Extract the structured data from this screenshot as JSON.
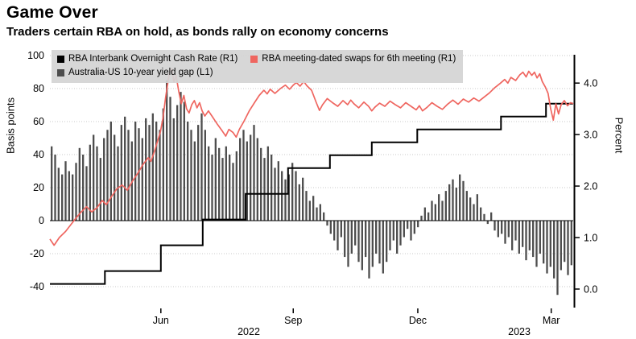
{
  "header": {
    "title": "Game Over",
    "subtitle": "Traders certain RBA on hold, as bonds rally on economy concerns"
  },
  "chart_data": {
    "type": "mixed",
    "title": "Game Over",
    "subtitle": "Traders certain RBA on hold, as bonds rally on economy concerns",
    "grid": {
      "color": "#c9c9c9",
      "zero_line_color": "#000000"
    },
    "left_axis": {
      "label": "Basis points",
      "min": -52.7,
      "max": 100.5,
      "ticks": [
        {
          "value": -40,
          "label": "-40"
        },
        {
          "value": -20,
          "label": "-20"
        },
        {
          "value": 0,
          "label": "0"
        },
        {
          "value": 20,
          "label": "20"
        },
        {
          "value": 40,
          "label": "40"
        },
        {
          "value": 60,
          "label": "60"
        },
        {
          "value": 80,
          "label": "80"
        },
        {
          "value": 100,
          "label": "100"
        }
      ]
    },
    "right_axis": {
      "label": "Percent",
      "min": -0.36,
      "max": 4.55,
      "ticks": [
        {
          "value": 0,
          "label": "0.0"
        },
        {
          "value": 1,
          "label": "1.0"
        },
        {
          "value": 2,
          "label": "2.0"
        },
        {
          "value": 3,
          "label": "3.0"
        },
        {
          "value": 4,
          "label": "4.0"
        }
      ]
    },
    "x_axis": {
      "month_ticks": [
        {
          "f": 0.212,
          "label": "Jun"
        },
        {
          "f": 0.465,
          "label": "Sep"
        },
        {
          "f": 0.703,
          "label": "Dec"
        },
        {
          "f": 0.958,
          "label": "Mar"
        }
      ],
      "year_labels": [
        {
          "f": 0.38,
          "label": "2022"
        },
        {
          "f": 0.897,
          "label": "2023"
        }
      ]
    },
    "legend": [
      {
        "label": "RBA Interbank Overnight Cash Rate (R1)",
        "color": "#000000",
        "series": "cash_rate"
      },
      {
        "label": "RBA meeting-dated swaps for 6th meeting (R1)",
        "color": "#ef6660",
        "series": "swaps"
      },
      {
        "label": "Australia-US 10-year yield gap (L1)",
        "color": "#4d4d4d",
        "series": "yield_gap"
      }
    ],
    "series": {
      "yield_gap": {
        "type": "bar",
        "axis": "left",
        "unit": "bp",
        "color": "#4d4d4d",
        "values": [
          45,
          40,
          32,
          28,
          36,
          30,
          28,
          35,
          44,
          40,
          33,
          46,
          52,
          45,
          38,
          50,
          55,
          60,
          52,
          45,
          58,
          63,
          55,
          48,
          60,
          56,
          50,
          62,
          58,
          65,
          60,
          55,
          68,
          85,
          75,
          62,
          70,
          78,
          72,
          60,
          55,
          48,
          58,
          65,
          55,
          45,
          40,
          50,
          44,
          38,
          45,
          40,
          35,
          42,
          50,
          55,
          48,
          52,
          58,
          50,
          44,
          38,
          45,
          40,
          32,
          36,
          30,
          25,
          28,
          35,
          30,
          22,
          26,
          18,
          12,
          15,
          8,
          10,
          5,
          -3,
          -8,
          -12,
          -18,
          -10,
          -22,
          -28,
          -20,
          -15,
          -25,
          -30,
          -22,
          -35,
          -28,
          -20,
          -26,
          -32,
          -25,
          -18,
          -12,
          -20,
          -15,
          -10,
          -5,
          -12,
          -8,
          -4,
          3,
          8,
          5,
          12,
          10,
          16,
          12,
          18,
          22,
          25,
          20,
          28,
          24,
          18,
          14,
          10,
          16,
          8,
          4,
          -2,
          5,
          -6,
          -10,
          -8,
          -14,
          -10,
          -18,
          -12,
          -20,
          -16,
          -24,
          -18,
          -22,
          -28,
          -20,
          -26,
          -32,
          -28,
          -35,
          -45,
          -30,
          -25,
          -33,
          -27
        ]
      },
      "cash_rate": {
        "type": "step",
        "axis": "right",
        "unit": "%",
        "color": "#000000",
        "points": [
          [
            0.0,
            0.1
          ],
          [
            0.105,
            0.35
          ],
          [
            0.212,
            0.85
          ],
          [
            0.292,
            1.35
          ],
          [
            0.374,
            1.85
          ],
          [
            0.455,
            2.35
          ],
          [
            0.535,
            2.6
          ],
          [
            0.615,
            2.85
          ],
          [
            0.702,
            3.1
          ],
          [
            0.862,
            3.35
          ],
          [
            0.948,
            3.6
          ],
          [
            1.0,
            3.6
          ]
        ]
      },
      "swaps": {
        "type": "line",
        "axis": "right",
        "unit": "%",
        "color": "#ef6660",
        "points": [
          [
            0.0,
            0.97
          ],
          [
            0.008,
            0.85
          ],
          [
            0.018,
            1.0
          ],
          [
            0.03,
            1.12
          ],
          [
            0.04,
            1.25
          ],
          [
            0.05,
            1.38
          ],
          [
            0.06,
            1.5
          ],
          [
            0.07,
            1.6
          ],
          [
            0.08,
            1.5
          ],
          [
            0.09,
            1.58
          ],
          [
            0.1,
            1.72
          ],
          [
            0.108,
            1.64
          ],
          [
            0.118,
            1.8
          ],
          [
            0.128,
            1.95
          ],
          [
            0.138,
            2.02
          ],
          [
            0.148,
            1.92
          ],
          [
            0.158,
            2.1
          ],
          [
            0.168,
            2.25
          ],
          [
            0.178,
            2.42
          ],
          [
            0.188,
            2.55
          ],
          [
            0.193,
            2.48
          ],
          [
            0.2,
            2.68
          ],
          [
            0.206,
            2.88
          ],
          [
            0.211,
            3.05
          ],
          [
            0.216,
            3.32
          ],
          [
            0.221,
            3.72
          ],
          [
            0.226,
            4.05
          ],
          [
            0.229,
            4.22
          ],
          [
            0.233,
            4.28
          ],
          [
            0.237,
            4.02
          ],
          [
            0.241,
            4.15
          ],
          [
            0.246,
            3.85
          ],
          [
            0.251,
            3.6
          ],
          [
            0.256,
            3.76
          ],
          [
            0.261,
            3.5
          ],
          [
            0.266,
            3.42
          ],
          [
            0.271,
            3.58
          ],
          [
            0.276,
            3.66
          ],
          [
            0.281,
            3.52
          ],
          [
            0.286,
            3.62
          ],
          [
            0.291,
            3.46
          ],
          [
            0.296,
            3.36
          ],
          [
            0.303,
            3.46
          ],
          [
            0.311,
            3.34
          ],
          [
            0.32,
            3.2
          ],
          [
            0.33,
            3.06
          ],
          [
            0.336,
            2.97
          ],
          [
            0.342,
            3.1
          ],
          [
            0.35,
            3.04
          ],
          [
            0.356,
            2.95
          ],
          [
            0.362,
            3.1
          ],
          [
            0.371,
            3.26
          ],
          [
            0.381,
            3.46
          ],
          [
            0.391,
            3.62
          ],
          [
            0.4,
            3.76
          ],
          [
            0.409,
            3.86
          ],
          [
            0.415,
            3.79
          ],
          [
            0.421,
            3.88
          ],
          [
            0.43,
            3.8
          ],
          [
            0.44,
            3.89
          ],
          [
            0.45,
            3.96
          ],
          [
            0.458,
            3.88
          ],
          [
            0.465,
            3.96
          ],
          [
            0.471,
            4.01
          ],
          [
            0.478,
            3.94
          ],
          [
            0.485,
            4.03
          ],
          [
            0.491,
            3.95
          ],
          [
            0.5,
            3.86
          ],
          [
            0.509,
            3.62
          ],
          [
            0.515,
            3.47
          ],
          [
            0.521,
            3.58
          ],
          [
            0.53,
            3.7
          ],
          [
            0.54,
            3.62
          ],
          [
            0.55,
            3.55
          ],
          [
            0.56,
            3.66
          ],
          [
            0.569,
            3.58
          ],
          [
            0.575,
            3.67
          ],
          [
            0.581,
            3.6
          ],
          [
            0.59,
            3.52
          ],
          [
            0.6,
            3.63
          ],
          [
            0.609,
            3.55
          ],
          [
            0.615,
            3.46
          ],
          [
            0.621,
            3.53
          ],
          [
            0.63,
            3.61
          ],
          [
            0.64,
            3.55
          ],
          [
            0.65,
            3.65
          ],
          [
            0.66,
            3.58
          ],
          [
            0.67,
            3.52
          ],
          [
            0.68,
            3.62
          ],
          [
            0.69,
            3.55
          ],
          [
            0.7,
            3.48
          ],
          [
            0.706,
            3.56
          ],
          [
            0.712,
            3.46
          ],
          [
            0.721,
            3.53
          ],
          [
            0.73,
            3.62
          ],
          [
            0.74,
            3.55
          ],
          [
            0.75,
            3.49
          ],
          [
            0.76,
            3.59
          ],
          [
            0.77,
            3.67
          ],
          [
            0.78,
            3.59
          ],
          [
            0.79,
            3.69
          ],
          [
            0.8,
            3.63
          ],
          [
            0.81,
            3.71
          ],
          [
            0.82,
            3.65
          ],
          [
            0.83,
            3.73
          ],
          [
            0.84,
            3.81
          ],
          [
            0.85,
            3.91
          ],
          [
            0.86,
            3.99
          ],
          [
            0.869,
            4.07
          ],
          [
            0.875,
            4.0
          ],
          [
            0.881,
            4.11
          ],
          [
            0.89,
            4.05
          ],
          [
            0.898,
            4.16
          ],
          [
            0.904,
            4.21
          ],
          [
            0.91,
            4.12
          ],
          [
            0.915,
            4.23
          ],
          [
            0.921,
            4.15
          ],
          [
            0.926,
            4.21
          ],
          [
            0.931,
            4.1
          ],
          [
            0.936,
            4.18
          ],
          [
            0.941,
            4.03
          ],
          [
            0.947,
            3.92
          ],
          [
            0.952,
            3.8
          ],
          [
            0.957,
            3.5
          ],
          [
            0.962,
            3.28
          ],
          [
            0.967,
            3.6
          ],
          [
            0.972,
            3.4
          ],
          [
            0.977,
            3.58
          ],
          [
            0.983,
            3.66
          ],
          [
            0.989,
            3.56
          ],
          [
            0.995,
            3.62
          ],
          [
            1.0,
            3.6
          ]
        ]
      }
    }
  }
}
